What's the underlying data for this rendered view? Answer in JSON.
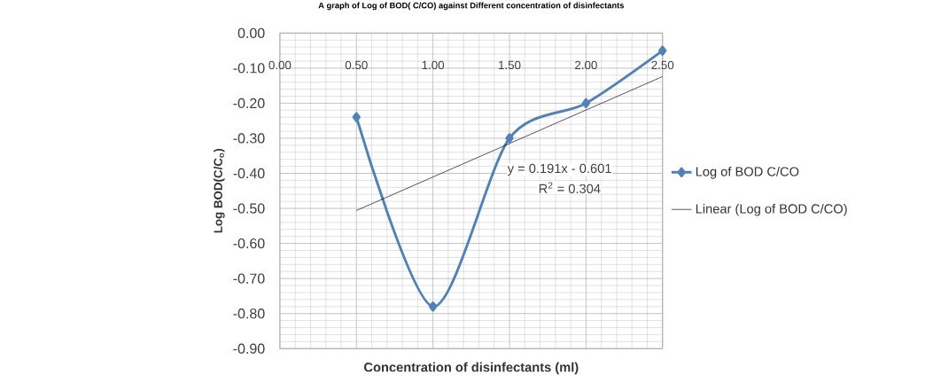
{
  "chart_data": {
    "type": "line",
    "title": "A graph of Log of BOD( C/CO) against Different concentration of disinfectants",
    "xlabel": "Concentration of disinfectants (ml)",
    "ylabel": "Log BOD(C/C$_{o}$)",
    "series": [
      {
        "name": "Log of BOD C/CO",
        "color": "#4f81bd",
        "x": [
          0.5,
          1.0,
          1.5,
          2.0,
          2.5
        ],
        "values": [
          -0.24,
          -0.78,
          -0.3,
          -0.2,
          -0.05
        ],
        "marker": "diamond"
      },
      {
        "name": "Linear (Log of BOD C/CO)",
        "color": "#000000",
        "x": [
          0.5,
          2.5
        ],
        "values": [
          -0.506,
          -0.124
        ],
        "marker": "none"
      }
    ],
    "xlim": [
      0,
      2.5
    ],
    "ylim": [
      -0.9,
      0
    ],
    "xticks": [
      {
        "value": 0,
        "label": "0.00"
      },
      {
        "value": 0.5,
        "label": "0.50"
      },
      {
        "value": 1.0,
        "label": "1.00"
      },
      {
        "value": 1.5,
        "label": "1.50"
      },
      {
        "value": 2.0,
        "label": "2.00"
      },
      {
        "value": 2.5,
        "label": "2.50"
      }
    ],
    "yticks": [
      {
        "value": 0,
        "label": "0.00"
      },
      {
        "value": -0.1,
        "label": "-0.10"
      },
      {
        "value": -0.2,
        "label": "-0.20"
      },
      {
        "value": -0.3,
        "label": "-0.30"
      },
      {
        "value": -0.4,
        "label": "-0.40"
      },
      {
        "value": -0.5,
        "label": "-0.50"
      },
      {
        "value": -0.6,
        "label": "-0.60"
      },
      {
        "value": -0.7,
        "label": "-0.70"
      },
      {
        "value": -0.8,
        "label": "-0.80"
      },
      {
        "value": -0.9,
        "label": "-0.90"
      }
    ],
    "annotations": [
      "y = 0.191x - 0.601",
      "R$^{2}$ = 0.304"
    ],
    "grid": true,
    "legend": "right"
  }
}
